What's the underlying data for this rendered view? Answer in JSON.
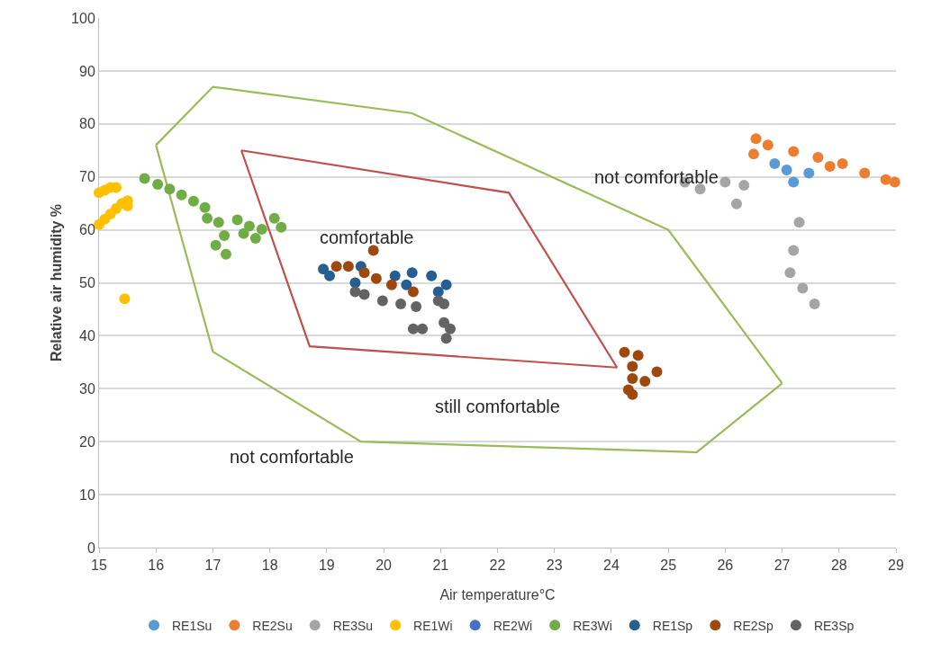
{
  "chart_data": {
    "type": "scatter",
    "xlabel": "Air temperature°C",
    "ylabel": "Relative air humidity %",
    "xlim": [
      15,
      29
    ],
    "xticks": [
      15,
      16,
      17,
      18,
      19,
      20,
      21,
      22,
      23,
      24,
      25,
      26,
      27,
      28,
      29
    ],
    "ylim": [
      0,
      100
    ],
    "yticks": [
      0,
      10,
      20,
      30,
      40,
      50,
      60,
      70,
      80,
      90,
      100
    ],
    "grid": "y",
    "legend": "bottom",
    "marker": "circle",
    "series": [
      {
        "type": "line",
        "marker": "none",
        "color": "#9bbb59",
        "x": [
          16,
          17,
          20.5,
          25,
          27
        ],
        "values": [
          76,
          87,
          82,
          60,
          31
        ]
      },
      {
        "type": "line",
        "marker": "none",
        "color": "#9bbb59",
        "x": [
          16,
          17,
          19.6,
          25.5,
          27
        ],
        "values": [
          76,
          37,
          20,
          18,
          31
        ]
      },
      {
        "type": "line",
        "marker": "none",
        "color": "#c0504d",
        "x": [
          17.5,
          22.2,
          24.1
        ],
        "values": [
          75,
          67,
          34
        ]
      },
      {
        "type": "line",
        "marker": "none",
        "color": "#c0504d",
        "x": [
          17.5,
          18.7,
          24.1
        ],
        "values": [
          75,
          38,
          34
        ]
      },
      {
        "name": "RE1Su",
        "color": "#5b9bd5",
        "x": [
          26.87,
          27.2,
          27.47,
          27.08
        ],
        "values": [
          72.5,
          69,
          70.7,
          71.3
        ]
      },
      {
        "name": "RE2Su",
        "color": "#ed7d31",
        "x": [
          26.54,
          26.75,
          27.2,
          27.63,
          28.06,
          28.45,
          28.82,
          28.98,
          26.5,
          27.84
        ],
        "values": [
          77.2,
          76,
          74.8,
          73.7,
          72.5,
          70.7,
          69.5,
          69,
          74.3,
          72
        ]
      },
      {
        "name": "RE3Su",
        "color": "#a5a5a5",
        "x": [
          25.29,
          25.56,
          26.0,
          26.33,
          26.2,
          27.3,
          27.2,
          27.14,
          27.36,
          27.57
        ],
        "values": [
          69,
          67.7,
          69,
          68.4,
          64.9,
          61.4,
          56.1,
          51.9,
          49,
          46
        ]
      },
      {
        "name": "RE1Wi",
        "color": "#ffc000",
        "x": [
          15.0,
          15.1,
          15.2,
          15.3,
          15.0,
          15.1,
          15.2,
          15.3,
          15.4,
          15.5,
          15.5,
          15.45
        ],
        "values": [
          67,
          67.5,
          68,
          68,
          61,
          62,
          63,
          64,
          65,
          65.5,
          64.5,
          47
        ]
      },
      {
        "name": "RE2Wi",
        "color": "#4472c4"
      },
      {
        "name": "RE3Wi",
        "color": "#70ad47",
        "x": [
          15.8,
          16.03,
          16.24,
          16.45,
          16.66,
          16.86,
          16.9,
          17.1,
          17.2,
          17.23,
          17.43,
          17.64,
          17.86,
          18.08,
          18.2,
          17.75,
          17.05,
          17.54
        ],
        "values": [
          69.7,
          68.6,
          67.7,
          66.6,
          65.4,
          64.2,
          62.2,
          61.4,
          58.9,
          55.4,
          61.9,
          60.7,
          60.1,
          62.2,
          60.5,
          58.4,
          57.1,
          59.3
        ]
      },
      {
        "name": "RE1Sp",
        "color": "#255e91",
        "x": [
          18.94,
          19.05,
          19.6,
          20.2,
          20.5,
          20.84,
          21.1,
          20.96,
          19.5,
          20.4
        ],
        "values": [
          52.6,
          51.3,
          53.1,
          51.3,
          51.9,
          51.3,
          49.6,
          48.3,
          50,
          49.6
        ]
      },
      {
        "name": "RE2Sp",
        "color": "#9e480e",
        "x": [
          19.17,
          19.38,
          19.66,
          19.87,
          20.14,
          20.52,
          19.82,
          24.23,
          24.47,
          24.37,
          24.37,
          24.37,
          24.59,
          24.8,
          24.3
        ],
        "values": [
          53.1,
          53.1,
          51.9,
          50.8,
          49.6,
          48.3,
          56.1,
          36.9,
          36.3,
          34.2,
          31.9,
          28.9,
          31.4,
          33.2,
          29.8
        ]
      },
      {
        "name": "RE3Sp",
        "color": "#636363",
        "x": [
          19.66,
          19.98,
          20.3,
          20.57,
          20.96,
          21.06,
          20.68,
          21.06,
          21.17,
          21.1,
          20.52,
          19.5
        ],
        "values": [
          47.8,
          46.6,
          46,
          45.5,
          46.6,
          46,
          41.3,
          42.5,
          41.3,
          39.5,
          41.3,
          48.3
        ]
      }
    ],
    "annotations": [
      "comfortable",
      "not comfortable",
      "still comfortable",
      "not comfortable"
    ]
  }
}
